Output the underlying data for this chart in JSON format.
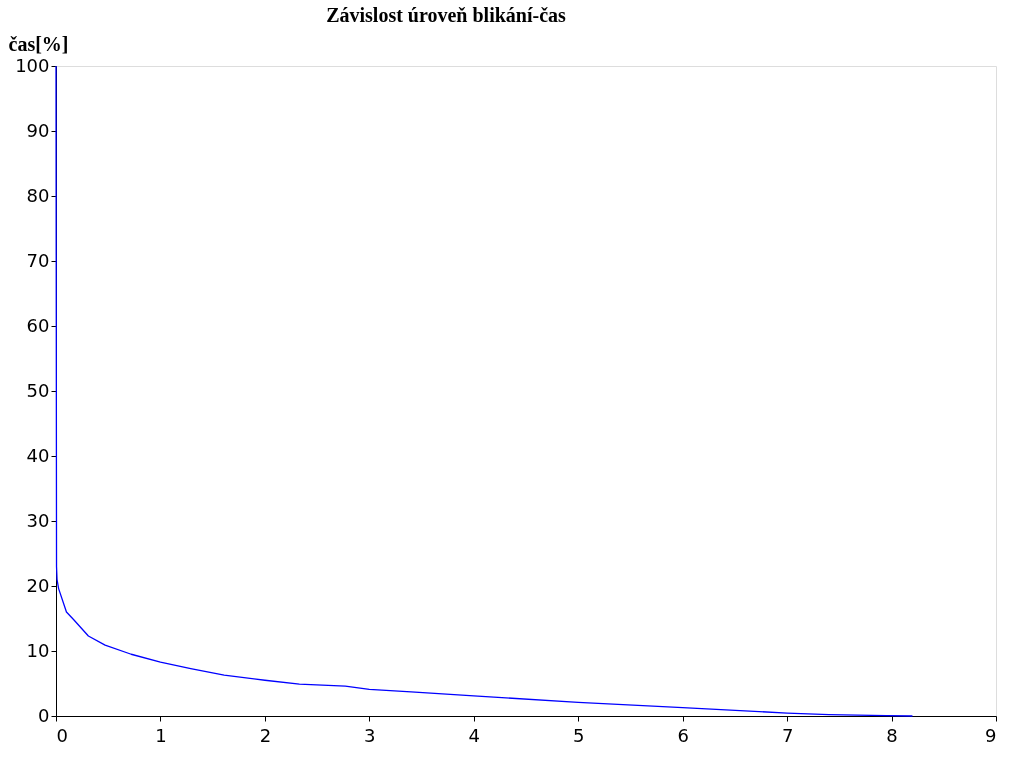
{
  "chart_data": {
    "type": "line",
    "title": "Závislost úroveň blikání-čas",
    "ylabel": "čas[%]",
    "x": [
      0,
      0.005,
      0.01,
      0.025,
      0.1,
      0.17,
      0.31,
      0.47,
      0.72,
      1.0,
      1.29,
      1.61,
      2.0,
      2.33,
      2.77,
      3.0,
      3.4,
      4.0,
      5.0,
      6.0,
      7.0,
      7.4,
      7.95,
      8.2
    ],
    "series": [
      {
        "color": "#0000ff",
        "values": [
          100,
          23,
          21,
          19.6,
          16.0,
          14.8,
          12.3,
          10.9,
          9.5,
          8.3,
          7.3,
          6.3,
          5.5,
          4.9,
          4.6,
          4.1,
          3.7,
          3.1,
          2.1,
          1.3,
          0.45,
          0.2,
          0.05,
          0
        ]
      }
    ],
    "xlim": [
      0,
      9
    ],
    "xticks": [
      0,
      1,
      2,
      3,
      4,
      5,
      6,
      7,
      8,
      9
    ],
    "ylim": [
      0,
      100
    ],
    "yticks": [
      0,
      10,
      20,
      30,
      40,
      50,
      60,
      70,
      80,
      90,
      100
    ],
    "grid": false,
    "legend": false,
    "marker": "none",
    "line_style": "solid"
  }
}
